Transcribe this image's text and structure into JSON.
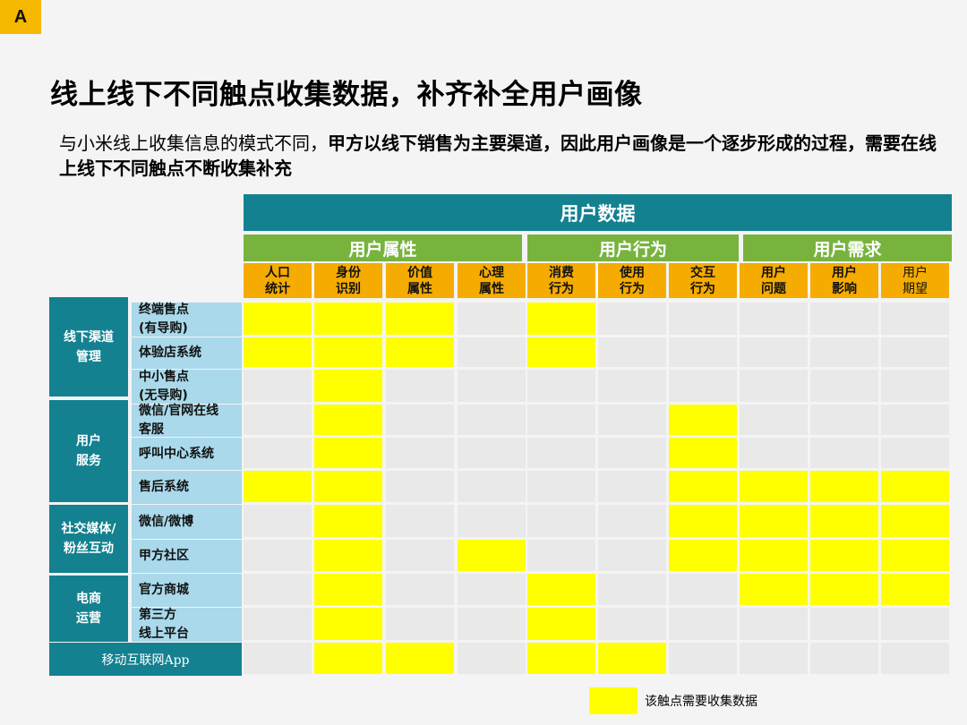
{
  "badge": "A",
  "title": "线上线下不同触点收集数据，补齐补全用户画像",
  "subtitle": {
    "normal": "与小米线上收集信息的模式不同，",
    "bold": "甲方以线下销售为主要渠道，因此用户画像是一个逐步形成的过程，需要在线上线下不同触点不断收集补充"
  },
  "table": {
    "main_header": "用户数据",
    "categories": [
      "用户属性",
      "用户行为",
      "用户需求"
    ],
    "columns": [
      "人口\n统计",
      "身份\n识别",
      "价值\n属性",
      "心理\n属性",
      "消费\n行为",
      "使用\n行为",
      "交互\n行为",
      "用户\n问题",
      "用户\n影响",
      "用户\n期望"
    ],
    "groups": [
      "线下渠道\n管理",
      "用户\n服务",
      "社交媒体/\n粉丝互动",
      "电商\n运营"
    ],
    "rows": [
      {
        "label": "终端售点\n(有导购)",
        "cells": [
          1,
          1,
          1,
          0,
          1,
          0,
          0,
          0,
          0,
          0
        ]
      },
      {
        "label": "体验店系统",
        "cells": [
          1,
          1,
          1,
          0,
          1,
          0,
          0,
          0,
          0,
          0
        ]
      },
      {
        "label": "中小售点\n(无导购)",
        "cells": [
          0,
          1,
          0,
          0,
          0,
          0,
          0,
          0,
          0,
          0
        ]
      },
      {
        "label": "微信/官网在线\n客服",
        "cells": [
          0,
          1,
          0,
          0,
          0,
          0,
          1,
          0,
          0,
          0
        ]
      },
      {
        "label": "呼叫中心系统",
        "cells": [
          0,
          1,
          0,
          0,
          0,
          0,
          1,
          0,
          0,
          0
        ]
      },
      {
        "label": "售后系统",
        "cells": [
          1,
          1,
          0,
          0,
          0,
          0,
          1,
          1,
          1,
          1
        ]
      },
      {
        "label": "微信/微博",
        "cells": [
          0,
          1,
          0,
          0,
          0,
          0,
          1,
          1,
          1,
          1
        ]
      },
      {
        "label": "甲方社区",
        "cells": [
          0,
          1,
          0,
          1,
          0,
          0,
          1,
          1,
          1,
          1
        ]
      },
      {
        "label": "官方商城",
        "cells": [
          0,
          1,
          0,
          0,
          1,
          0,
          0,
          1,
          1,
          1
        ]
      },
      {
        "label": "第三方\n线上平台",
        "cells": [
          0,
          1,
          0,
          0,
          1,
          0,
          0,
          0,
          0,
          0
        ]
      },
      {
        "label": "移动互联网App",
        "cells": [
          0,
          1,
          1,
          0,
          1,
          1,
          0,
          0,
          0,
          0
        ]
      }
    ]
  },
  "legend": "该触点需要收集数据",
  "colors": {
    "highlight": "#ffff00",
    "teal": "#138190",
    "green": "#78b33e",
    "orange": "#f5ab00"
  }
}
